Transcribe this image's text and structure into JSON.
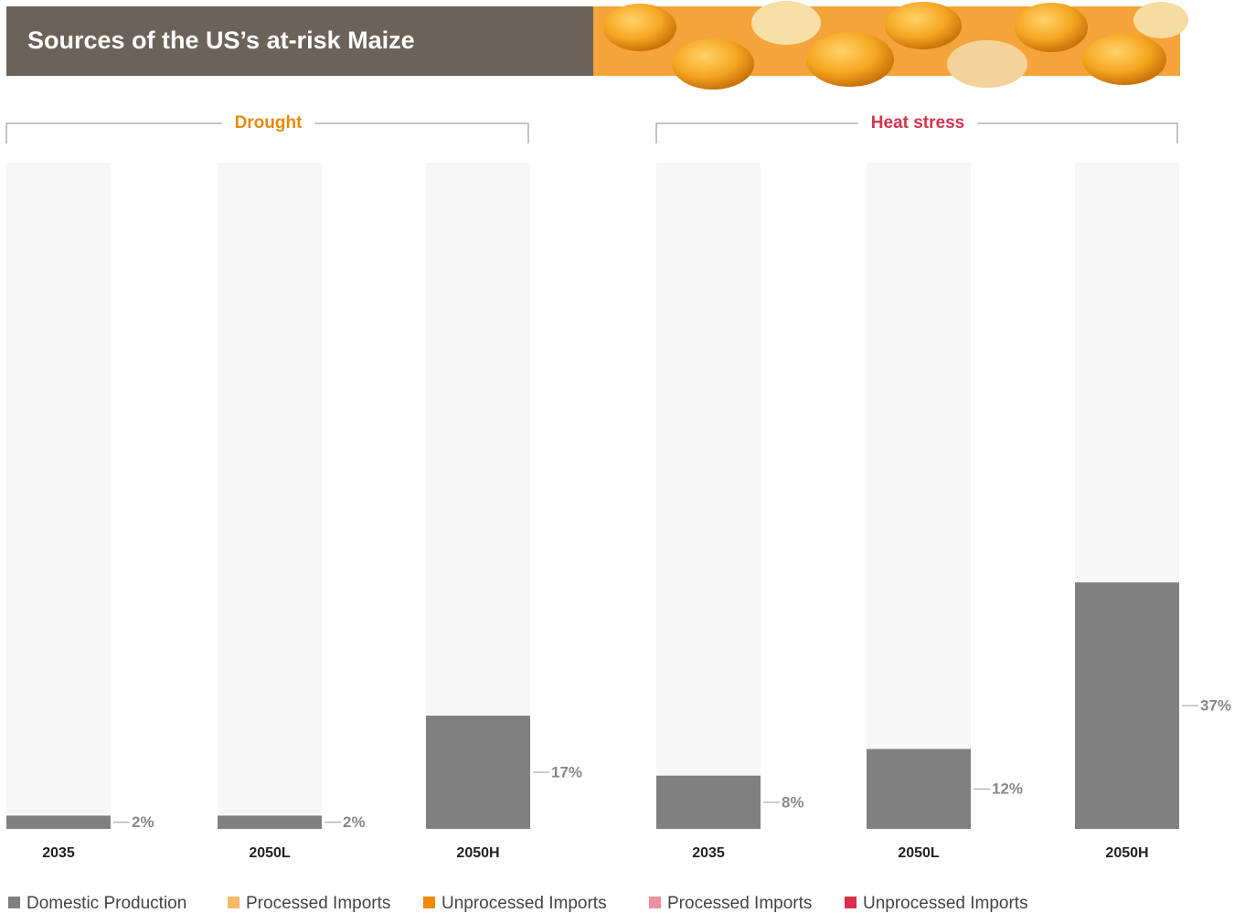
{
  "title": "Sources of the US’s at-risk Maize",
  "chart_data": [
    {
      "type": "bar",
      "title": "Drought",
      "title_color": "#e8890c",
      "categories": [
        "2035",
        "2050L",
        "2050H"
      ],
      "values": [
        2,
        2,
        17
      ],
      "value_labels": [
        "2%",
        "2%",
        "17%"
      ],
      "color": "#808080",
      "ylim": [
        0,
        100
      ]
    },
    {
      "type": "bar",
      "title": "Heat stress",
      "title_color": "#d6334b",
      "categories": [
        "2035",
        "2050L",
        "2050H"
      ],
      "values": [
        8,
        12,
        37
      ],
      "value_labels": [
        "8%",
        "12%",
        "37%"
      ],
      "color": "#808080",
      "ylim": [
        0,
        100
      ]
    }
  ],
  "legend": [
    {
      "name": "Domestic Production",
      "color": "#808080"
    },
    {
      "name": "Processed Imports",
      "color": "#f5b96a"
    },
    {
      "name": "Unprocessed Imports",
      "color": "#ee8b00"
    },
    {
      "name": "Processed Imports",
      "color": "#ec8f9f"
    },
    {
      "name": "Unprocessed Imports",
      "color": "#d92f4a"
    }
  ]
}
